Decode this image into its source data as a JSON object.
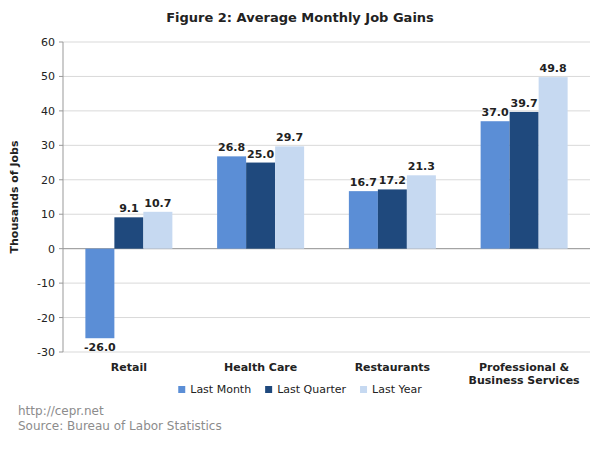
{
  "chart_data": {
    "type": "bar",
    "title": "Figure 2: Average Monthly Job Gains",
    "y_label": "Thousands of Jobs",
    "categories": [
      "Retail",
      "Health Care",
      "Restaurants",
      "Professional & Business Services"
    ],
    "series": [
      {
        "name": "Last Month",
        "color": "#5b8ed6",
        "values": [
          -26.0,
          26.8,
          16.7,
          37.0
        ],
        "value_labels": [
          "-26.0",
          "26.8",
          "16.7",
          "37.0"
        ]
      },
      {
        "name": "Last Quarter",
        "color": "#1f497d",
        "values": [
          9.1,
          25.0,
          17.2,
          39.7
        ],
        "value_labels": [
          "9.1",
          "25.0",
          "17.2",
          "39.7"
        ]
      },
      {
        "name": "Last Year",
        "color": "#c6d9f1",
        "values": [
          10.7,
          29.7,
          21.3,
          49.8
        ],
        "value_labels": [
          "10.7",
          "29.7",
          "21.3",
          "49.8"
        ]
      }
    ],
    "ylim": [
      -30,
      60
    ],
    "yticks": [
      -30,
      -20,
      -10,
      0,
      10,
      20,
      30,
      40,
      50,
      60
    ],
    "grid": true,
    "legend": "bottom",
    "data_labels": true,
    "annotations": [
      "http://cepr.net",
      "Source: Bureau of Labor Statistics"
    ]
  }
}
